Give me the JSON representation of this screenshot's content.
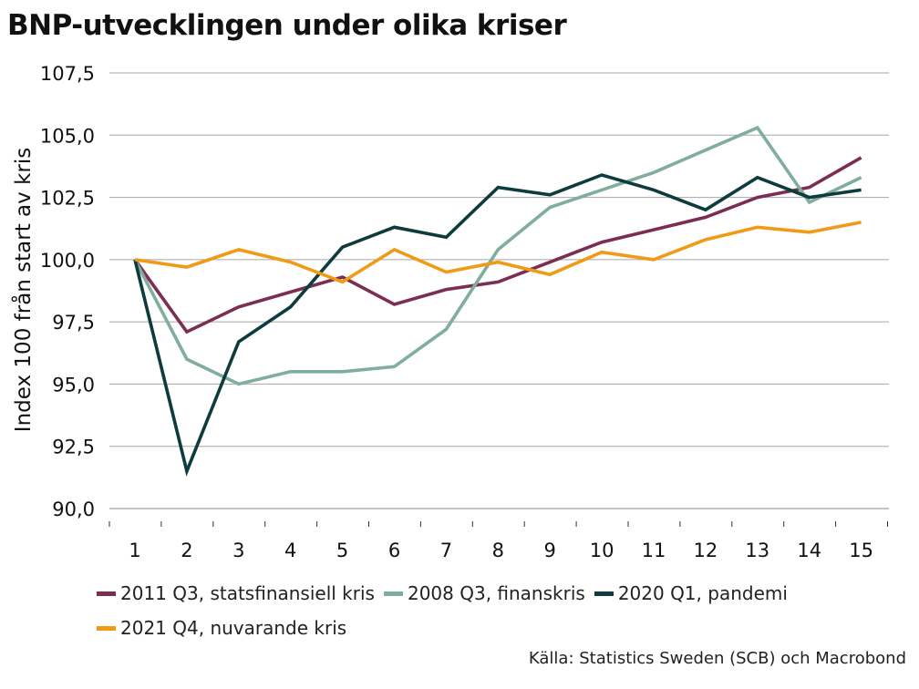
{
  "chart_data": {
    "type": "line",
    "title": "BNP-utvecklingen under olika kriser",
    "ylabel": "Index 100 från start av kris",
    "xlabel": "",
    "categories": [
      "1",
      "2",
      "3",
      "4",
      "5",
      "6",
      "7",
      "8",
      "9",
      "10",
      "11",
      "12",
      "13",
      "14",
      "15"
    ],
    "y_ticks": [
      "90,0",
      "92,5",
      "95,0",
      "97,5",
      "100,0",
      "102,5",
      "105,0",
      "107,5"
    ],
    "y_tick_values": [
      90,
      92.5,
      95,
      97.5,
      100,
      102.5,
      105,
      107.5
    ],
    "ylim": [
      90,
      107.5
    ],
    "grid": true,
    "legend_position": "bottom",
    "series": [
      {
        "name": "2011 Q3, statsfinansiell kris",
        "color": "#7b2d52",
        "values": [
          100.0,
          97.1,
          98.1,
          98.7,
          99.3,
          98.2,
          98.8,
          99.1,
          99.9,
          100.7,
          101.2,
          101.7,
          102.5,
          102.9,
          104.1
        ]
      },
      {
        "name": "2008 Q3, finanskris",
        "color": "#7fae9c",
        "values": [
          100.0,
          96.0,
          95.0,
          95.5,
          95.5,
          95.7,
          97.2,
          100.4,
          102.1,
          102.8,
          103.5,
          104.4,
          105.3,
          102.3,
          103.3
        ]
      },
      {
        "name": "2020 Q1, pandemi",
        "color": "#0d3b3e",
        "values": [
          100.0,
          91.5,
          96.7,
          98.1,
          100.5,
          101.3,
          100.9,
          102.9,
          102.6,
          103.4,
          102.8,
          102.0,
          103.3,
          102.5,
          102.8
        ]
      },
      {
        "name": "2021 Q4, nuvarande kris",
        "color": "#f09a16",
        "values": [
          100.0,
          99.7,
          100.4,
          99.9,
          99.1,
          100.4,
          99.5,
          99.9,
          99.4,
          100.3,
          100.0,
          100.8,
          101.3,
          101.1,
          101.5
        ]
      }
    ]
  },
  "source": "Källa: Statistics Sweden (SCB) och Macrobond"
}
